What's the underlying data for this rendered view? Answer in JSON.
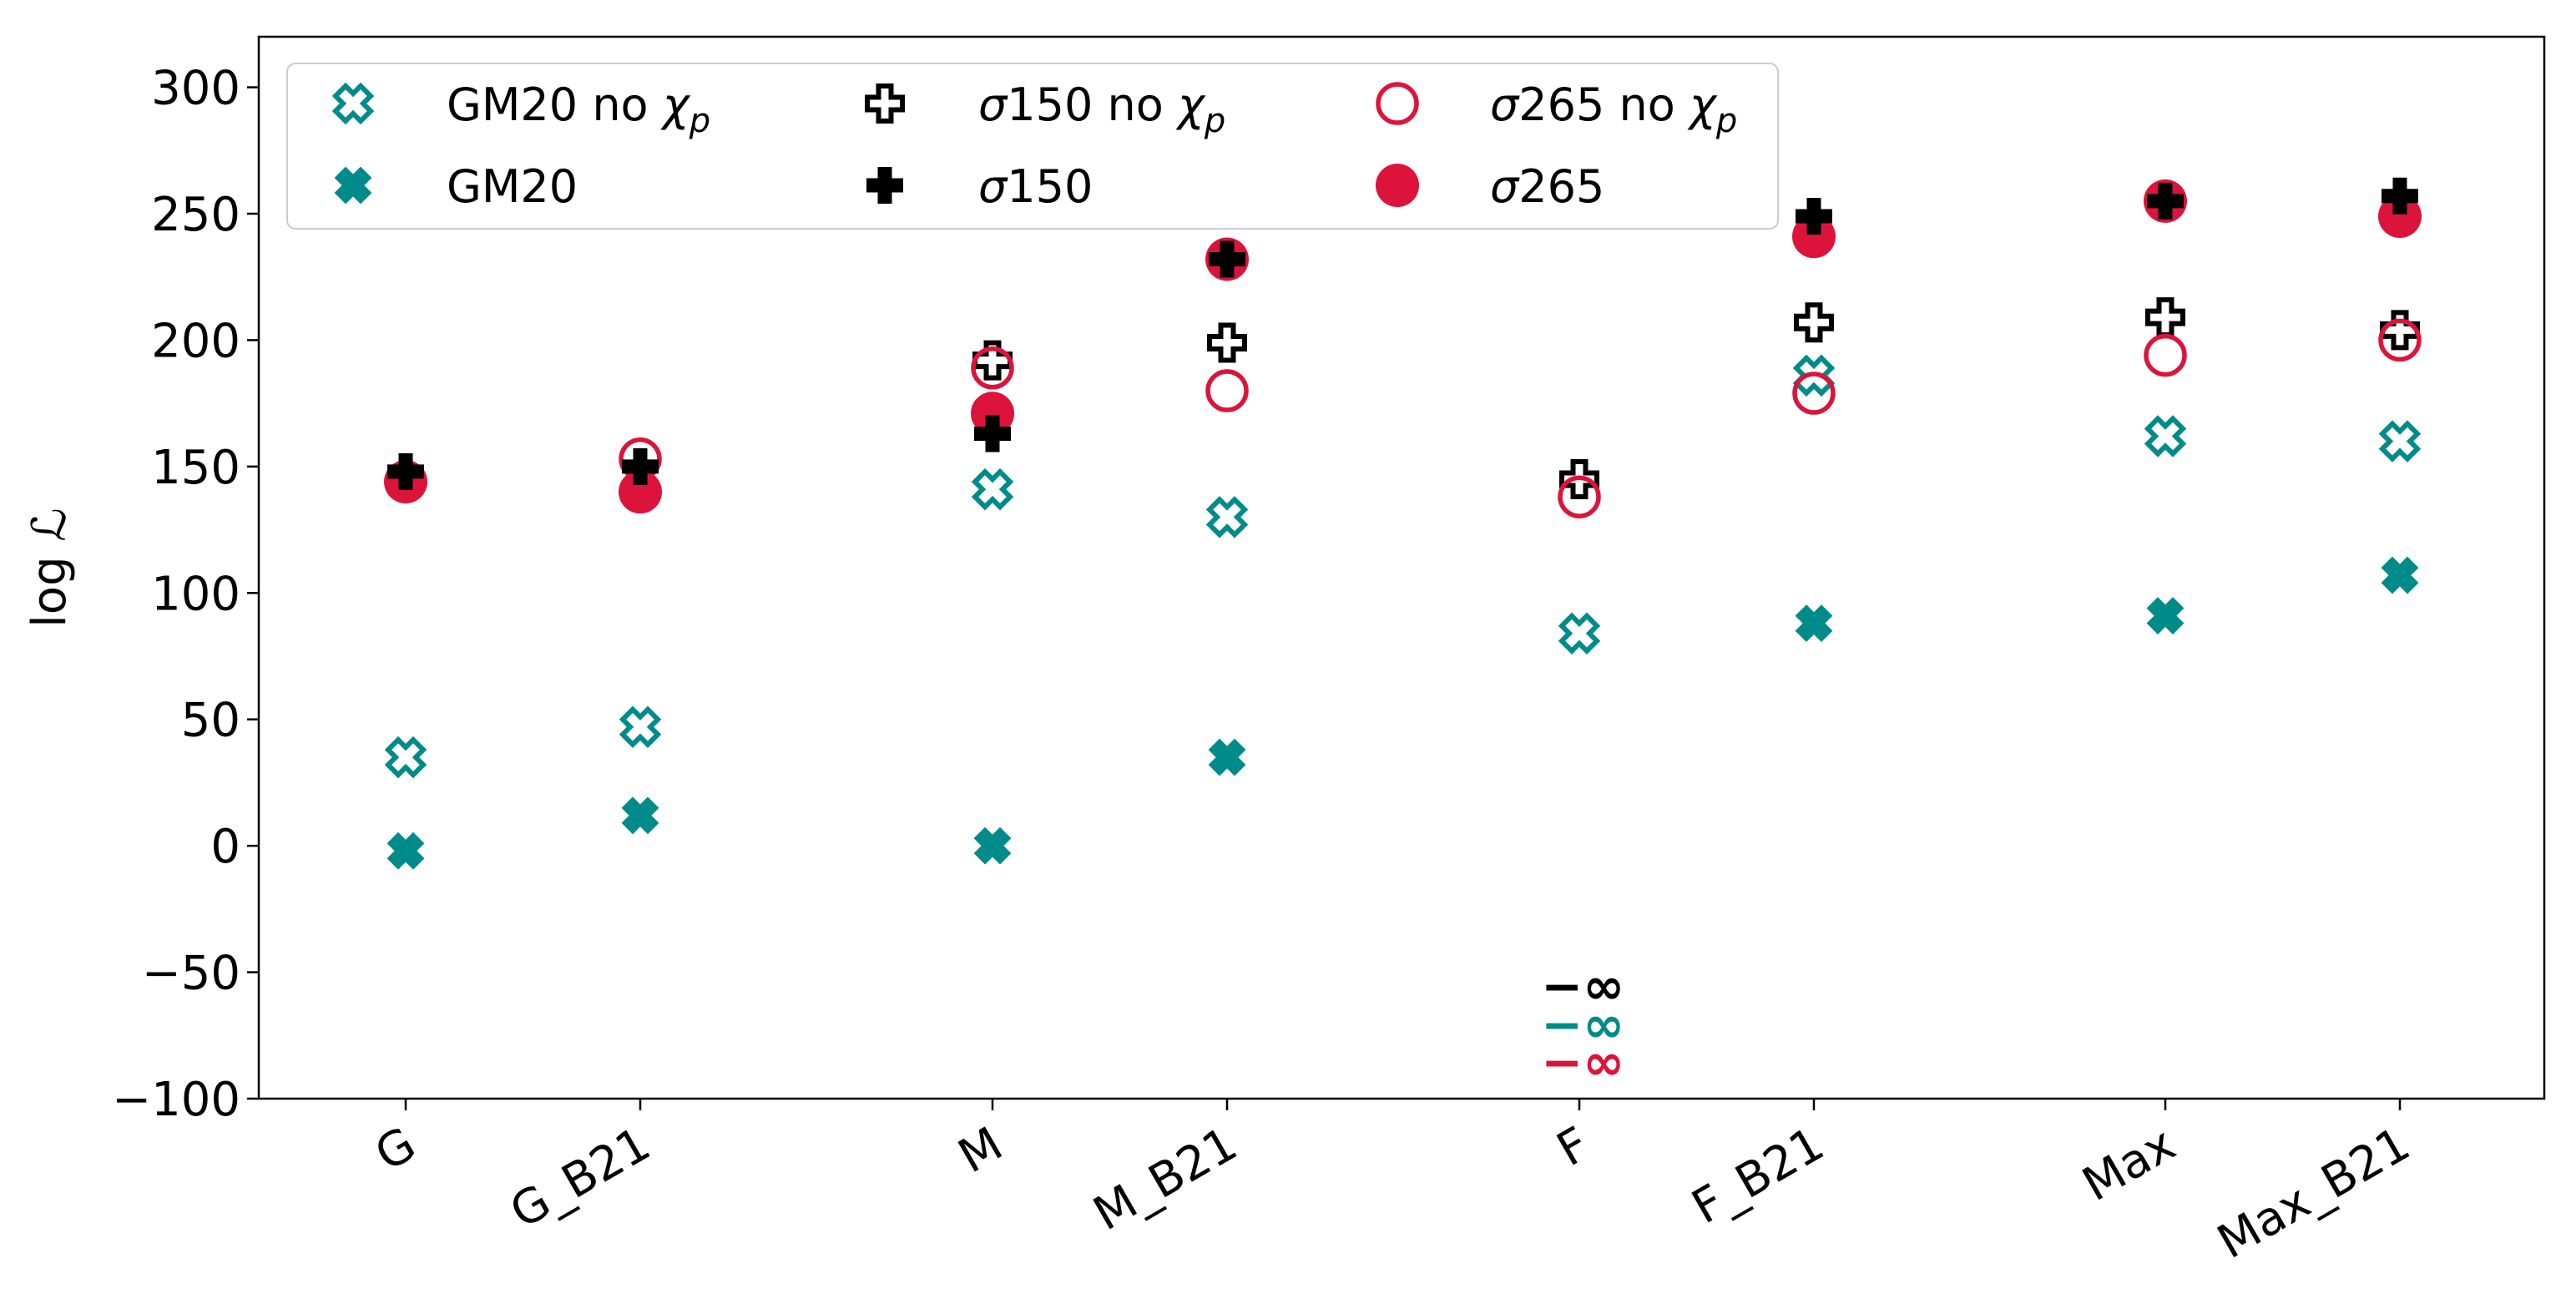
{
  "chart_data": {
    "type": "scatter",
    "title": "",
    "xlabel": "",
    "ylabel": "log ℒ",
    "categories": [
      "G",
      "G_B21",
      "M",
      "M_B21",
      "F",
      "F_B21",
      "Max",
      "Max_B21"
    ],
    "ylim": [
      -100,
      320
    ],
    "yticks": [
      -100,
      -50,
      0,
      50,
      100,
      150,
      200,
      250,
      300
    ],
    "ytick_labels": [
      "−100",
      "−50",
      "0",
      "50",
      "100",
      "150",
      "200",
      "250",
      "300"
    ],
    "series": [
      {
        "name": "GM20 no χp",
        "label_main": "GM20 no ",
        "label_sym": "χ",
        "label_sub": "p",
        "marker": "x-open",
        "color": "#008b8b",
        "values": [
          35,
          47,
          141,
          130,
          84,
          186,
          162,
          160
        ]
      },
      {
        "name": "GM20",
        "label_main": "GM20",
        "label_sym": "",
        "label_sub": "",
        "marker": "x-filled",
        "color": "#008b8b",
        "values": [
          -2,
          12,
          0,
          35,
          null,
          88,
          91,
          107
        ]
      },
      {
        "name": "σ150 no χp",
        "label_main": "150 no ",
        "label_prefix": "σ",
        "label_sym": "χ",
        "label_sub": "p",
        "marker": "plus-open",
        "color": "#000000",
        "values": [
          null,
          null,
          192,
          199,
          145,
          207,
          209,
          204
        ]
      },
      {
        "name": "σ150",
        "label_main": "150",
        "label_prefix": "σ",
        "label_sym": "",
        "label_sub": "",
        "marker": "plus-filled",
        "color": "#000000",
        "values": [
          148,
          150,
          163,
          232,
          null,
          249,
          255,
          257
        ]
      },
      {
        "name": "σ265 no χp",
        "label_main": "265 no ",
        "label_prefix": "σ",
        "label_sym": "χ",
        "label_sub": "p",
        "marker": "circle-open",
        "color": "#dc143c",
        "values": [
          null,
          153,
          189,
          180,
          138,
          179,
          194,
          200
        ]
      },
      {
        "name": "σ265",
        "label_main": "265",
        "label_prefix": "σ",
        "label_sym": "",
        "label_sub": "",
        "marker": "circle-filled",
        "color": "#dc143c",
        "values": [
          144,
          140,
          171,
          232,
          null,
          241,
          255,
          249
        ]
      }
    ],
    "annotations": [
      {
        "category": "F",
        "text": "−∞",
        "color": "#000000",
        "series": "σ150"
      },
      {
        "category": "F",
        "text": "−∞",
        "color": "#008b8b",
        "series": "GM20"
      },
      {
        "category": "F",
        "text": "−∞",
        "color": "#dc143c",
        "series": "σ265"
      }
    ],
    "legend_position": "upper-left",
    "grid": false
  }
}
